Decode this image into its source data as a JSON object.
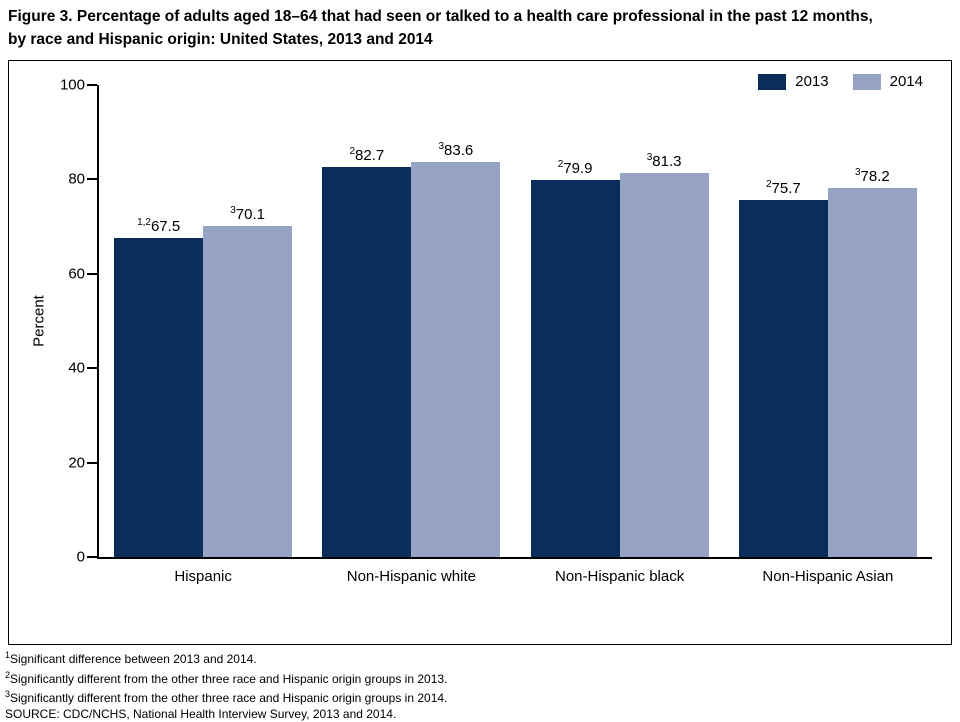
{
  "title": {
    "line1": "Figure 3. Percentage of adults aged 18–64 that had seen or talked to a health care professional in the past 12 months,",
    "line2": "by race and Hispanic origin: United States, 2013 and 2014"
  },
  "chart_data": {
    "type": "bar",
    "title": "Figure 3. Percentage of adults aged 18–64 that had seen or talked to a health care professional in the past 12 months, by race and Hispanic origin: United States, 2013 and 2014",
    "ylabel": "Percent",
    "ylim": [
      0,
      100
    ],
    "yticks": [
      0,
      20,
      40,
      60,
      80,
      100
    ],
    "grid": false,
    "legend_position": "top-right",
    "categories": [
      "Hispanic",
      "Non-Hispanic white",
      "Non-Hispanic black",
      "Non-Hispanic Asian"
    ],
    "series": [
      {
        "name": "2013",
        "color": "#0b2d5c",
        "values": [
          67.5,
          82.7,
          79.9,
          75.7
        ],
        "value_superscripts": [
          "1,2",
          "2",
          "2",
          "2"
        ]
      },
      {
        "name": "2014",
        "color": "#97a3c5",
        "values": [
          70.1,
          83.6,
          81.3,
          78.2
        ],
        "value_superscripts": [
          "3",
          "3",
          "3",
          "3"
        ]
      }
    ]
  },
  "footnotes": [
    {
      "sup": "1",
      "text": "Significant difference between 2013 and 2014."
    },
    {
      "sup": "2",
      "text": "Significantly different from the other three race and Hispanic origin groups in 2013."
    },
    {
      "sup": "3",
      "text": "Significantly different from the other three race and Hispanic origin groups in 2014."
    },
    {
      "sup": "",
      "text": "SOURCE: CDC/NCHS, National Health Interview Survey, 2013 and 2014."
    }
  ]
}
